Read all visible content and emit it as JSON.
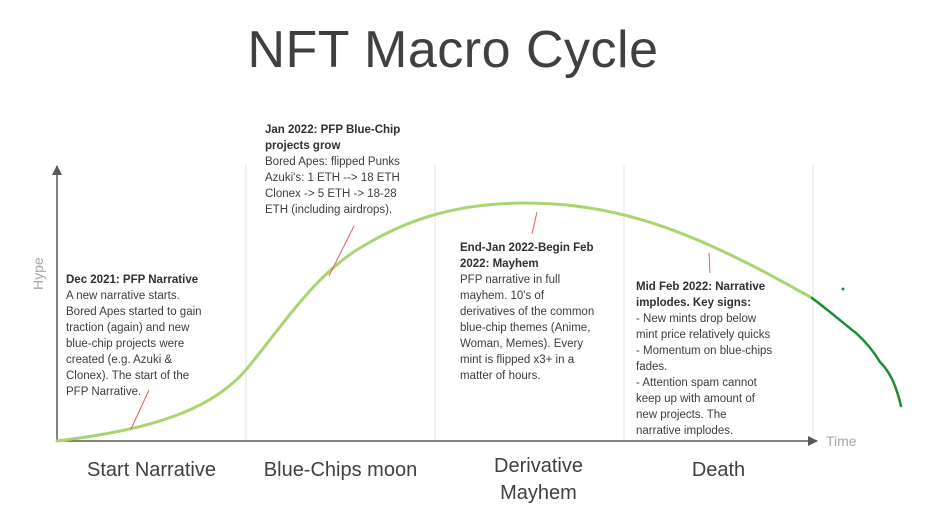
{
  "title": "NFT Macro Cycle",
  "axes": {
    "x_label": "Time",
    "y_label": "Hype"
  },
  "phases": [
    {
      "label": "Start Narrative"
    },
    {
      "label": "Blue-Chips moon"
    },
    {
      "label": "Derivative\nMayhem"
    },
    {
      "label": "Death"
    }
  ],
  "annotations": [
    {
      "heading": "Dec 2021: PFP Narrative",
      "body": "A new narrative starts.\nBored Apes started to gain\ntraction (again) and new\nblue-chip projects were\ncreated (e.g. Azuki &\nClonex). The start of the\nPFP Narrative."
    },
    {
      "heading": "Jan 2022: PFP Blue-Chip\nprojects grow",
      "body": "Bored Apes: flipped Punks\nAzuki's: 1 ETH --> 18 ETH\nClonex -> 5 ETH -> 18-28\nETH (including airdrops)."
    },
    {
      "heading": "End-Jan 2022-Begin Feb\n2022: Mayhem",
      "body": "PFP narrative in full\nmayhem. 10's of\nderivatives of the common\nblue-chip themes (Anime,\nWoman, Memes). Every\nmint is flipped x3+ in a\nmatter of hours."
    },
    {
      "heading": "Mid Feb 2022: Narrative\nimplodes. Key signs:",
      "body": "- New mints drop below\nmint price relatively quicks\n- Momentum on blue-chips\nfades.\n- Attention spam cannot\nkeep up with amount of\nnew projects. The\nnarrative implodes."
    }
  ],
  "colors": {
    "curve": "#a9d46f",
    "decline": "#1e8a32",
    "pointer": "#e06060",
    "axis": "#595959",
    "divider": "#e3e3e3"
  }
}
